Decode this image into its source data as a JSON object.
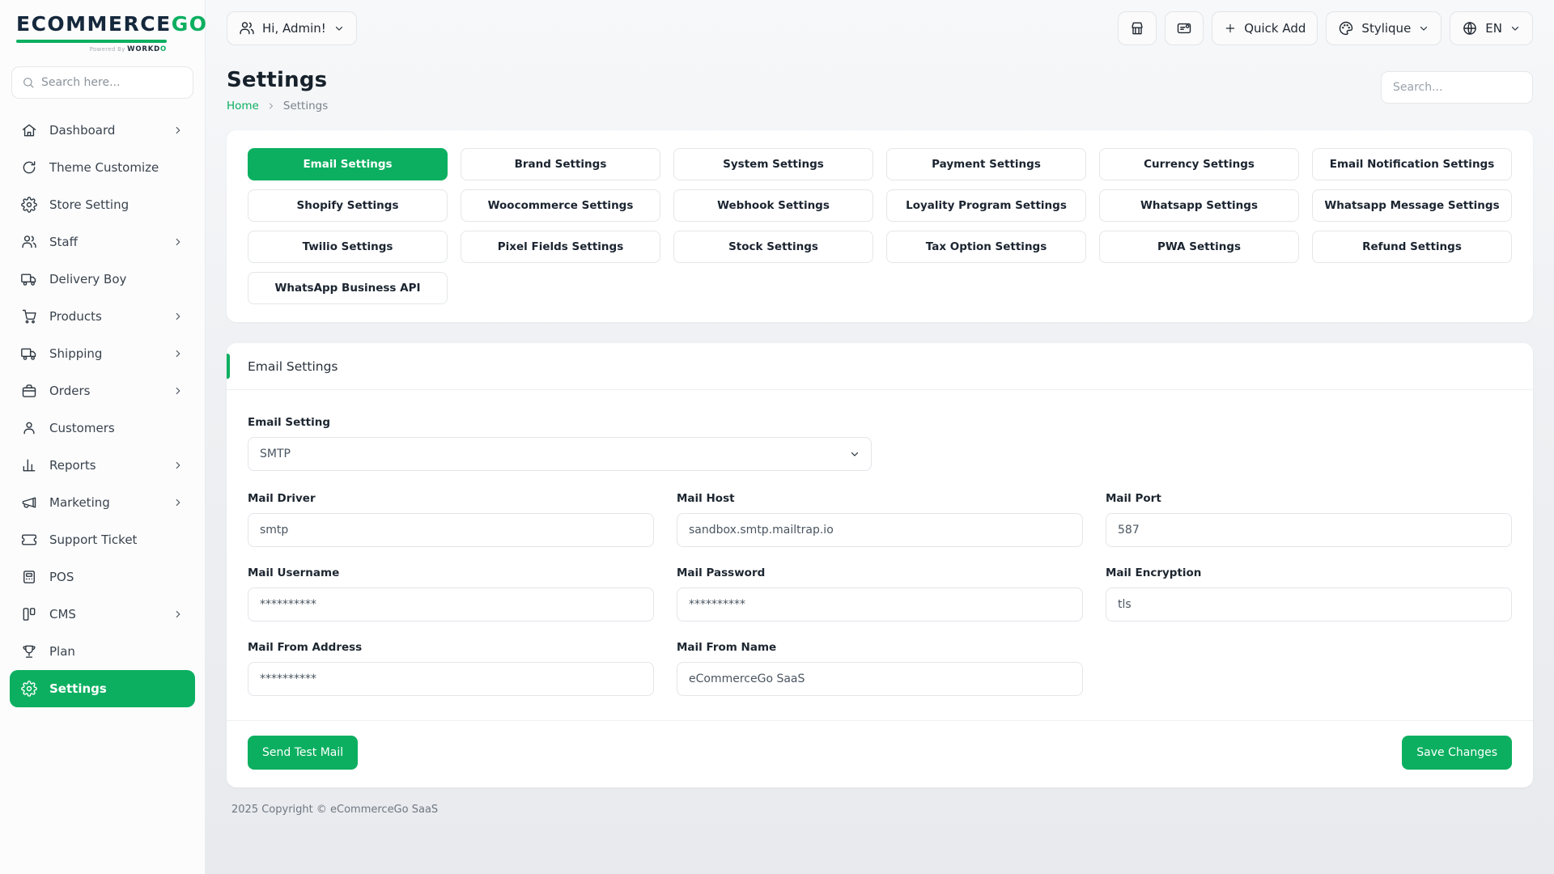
{
  "brand": {
    "logo_primary": "ECOMMERCE",
    "logo_accent": "GO",
    "powered_by": "Powered By",
    "powered_brand": "WORKDO",
    "accent_color": "#0caf60",
    "logo_dark_color": "#15283c"
  },
  "sidebar": {
    "search_placeholder": "Search here...",
    "items": [
      {
        "label": "Dashboard",
        "icon": "home-icon",
        "chevron": true,
        "active": false
      },
      {
        "label": "Theme Customize",
        "icon": "theme-customize-icon",
        "chevron": false,
        "active": false
      },
      {
        "label": "Store Setting",
        "icon": "store-setting-gear-icon",
        "chevron": false,
        "active": false
      },
      {
        "label": "Staff",
        "icon": "staff-users-icon",
        "chevron": true,
        "active": false
      },
      {
        "label": "Delivery Boy",
        "icon": "delivery-truck-icon",
        "chevron": false,
        "active": false
      },
      {
        "label": "Products",
        "icon": "products-cart-icon",
        "chevron": true,
        "active": false
      },
      {
        "label": "Shipping",
        "icon": "shipping-truck-icon",
        "chevron": true,
        "active": false
      },
      {
        "label": "Orders",
        "icon": "orders-bag-icon",
        "chevron": true,
        "active": false
      },
      {
        "label": "Customers",
        "icon": "customer-icon",
        "chevron": false,
        "active": false
      },
      {
        "label": "Reports",
        "icon": "reports-chart-icon",
        "chevron": true,
        "active": false
      },
      {
        "label": "Marketing",
        "icon": "marketing-megaphone-icon",
        "chevron": true,
        "active": false
      },
      {
        "label": "Support Ticket",
        "icon": "support-ticket-icon",
        "chevron": false,
        "active": false
      },
      {
        "label": "POS",
        "icon": "pos-icon",
        "chevron": false,
        "active": false
      },
      {
        "label": "CMS",
        "icon": "cms-icon",
        "chevron": true,
        "active": false
      },
      {
        "label": "Plan",
        "icon": "plan-trophy-icon",
        "chevron": false,
        "active": false
      },
      {
        "label": "Settings",
        "icon": "settings-gear-icon",
        "chevron": false,
        "active": true
      }
    ]
  },
  "topbar": {
    "user_greeting": "Hi, Admin!",
    "quick_add_label": "Quick Add",
    "theme_label": "Stylique",
    "language_label": "EN"
  },
  "page_header": {
    "title": "Settings",
    "breadcrumb_home": "Home",
    "breadcrumb_current": "Settings",
    "search_placeholder": "Search..."
  },
  "settings_tabs": {
    "active": "Email Settings",
    "tabs": [
      "Email Settings",
      "Brand Settings",
      "System Settings",
      "Payment Settings",
      "Currency Settings",
      "Email Notification Settings",
      "Shopify Settings",
      "Woocommerce Settings",
      "Webhook Settings",
      "Loyality Program Settings",
      "Whatsapp Settings",
      "Whatsapp Message Settings",
      "Twilio Settings",
      "Pixel Fields Settings",
      "Stock Settings",
      "Tax Option Settings",
      "PWA Settings",
      "Refund Settings",
      "WhatsApp Business API"
    ]
  },
  "email_settings": {
    "section_title": "Email Settings",
    "select_field": {
      "label": "Email Setting",
      "value": "SMTP"
    },
    "fields": [
      {
        "label": "Mail Driver",
        "value": "smtp"
      },
      {
        "label": "Mail Host",
        "value": "sandbox.smtp.mailtrap.io"
      },
      {
        "label": "Mail Port",
        "value": "587"
      },
      {
        "label": "Mail Username",
        "value": "**********"
      },
      {
        "label": "Mail Password",
        "value": "**********"
      },
      {
        "label": "Mail Encryption",
        "value": "tls"
      },
      {
        "label": "Mail From Address",
        "value": "**********"
      },
      {
        "label": "Mail From Name",
        "value": "eCommerceGo SaaS"
      }
    ],
    "send_test_mail_label": "Send Test Mail",
    "save_changes_label": "Save Changes"
  },
  "footer": {
    "copyright": "2025 Copyright © eCommerceGo SaaS"
  }
}
